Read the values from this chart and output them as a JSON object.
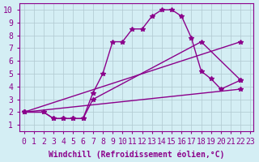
{
  "xlabel": "Windchill (Refroidissement éolien,°C)",
  "background_color": "#d4eef4",
  "line_color": "#8b008b",
  "grid_color": "#b0c8d0",
  "xticks": [
    0,
    1,
    2,
    3,
    4,
    5,
    6,
    7,
    8,
    9,
    10,
    11,
    12,
    13,
    14,
    15,
    16,
    17,
    18,
    19,
    20,
    21,
    22,
    23
  ],
  "yticks": [
    1,
    2,
    3,
    4,
    5,
    6,
    7,
    8,
    9,
    10
  ],
  "series1_x": [
    0,
    2,
    3,
    4,
    5,
    6,
    7,
    8,
    9,
    10,
    11,
    12,
    13,
    14,
    15,
    16,
    17,
    18,
    19,
    20,
    22
  ],
  "series1_y": [
    2.0,
    2.0,
    1.5,
    1.5,
    1.5,
    1.5,
    3.5,
    5.0,
    7.5,
    7.5,
    8.5,
    8.5,
    9.5,
    10.0,
    10.0,
    9.5,
    7.8,
    5.2,
    4.6,
    3.8,
    4.5
  ],
  "series2_x": [
    0,
    2,
    3,
    4,
    5,
    6,
    7,
    18,
    22
  ],
  "series2_y": [
    2.0,
    2.0,
    1.5,
    1.5,
    1.5,
    1.5,
    3.0,
    7.5,
    4.5
  ],
  "series3_x": [
    0,
    22
  ],
  "series3_y": [
    2.0,
    3.8
  ],
  "series4_x": [
    0,
    22
  ],
  "series4_y": [
    2.0,
    7.5
  ],
  "tick_fontsize": 7,
  "label_fontsize": 7
}
